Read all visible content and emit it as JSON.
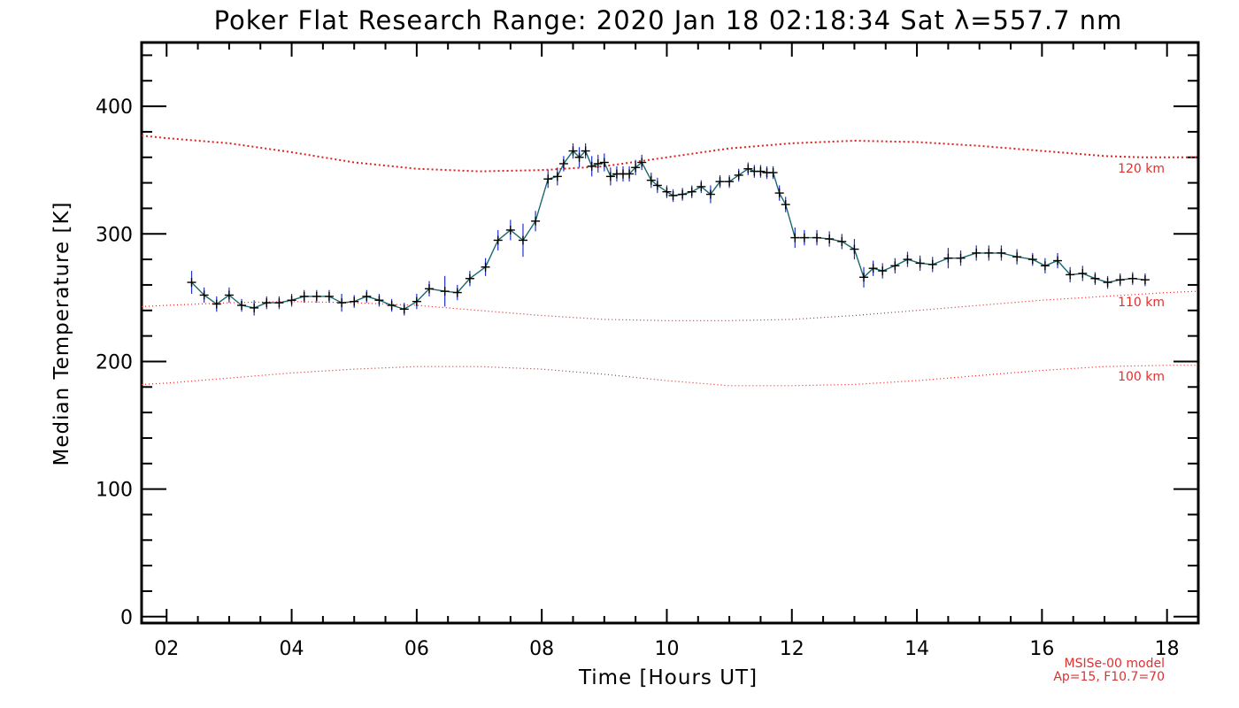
{
  "chart_data": {
    "type": "line",
    "title": "Poker Flat Research Range: 2020 Jan 18 02:18:34 Sat λ=557.7 nm",
    "xlabel": "Time [Hours UT]",
    "ylabel": "Median Temperature [K]",
    "xlim": [
      1.6,
      18.5
    ],
    "ylim": [
      -5,
      450
    ],
    "xticks": [
      2,
      4,
      6,
      8,
      10,
      12,
      14,
      16,
      18
    ],
    "xtick_labels": [
      "02",
      "04",
      "06",
      "08",
      "10",
      "12",
      "14",
      "16",
      "18"
    ],
    "yticks": [
      0,
      100,
      200,
      300,
      400
    ],
    "ytick_labels": [
      "0",
      "100",
      "200",
      "300",
      "400"
    ],
    "grid": false,
    "series": [
      {
        "color": "#1a6a70",
        "errorbar_color": "#2030d0",
        "marker_color": "#000000",
        "x": [
          2.4,
          2.6,
          2.8,
          3.0,
          3.2,
          3.4,
          3.6,
          3.8,
          4.0,
          4.2,
          4.4,
          4.6,
          4.8,
          5.0,
          5.2,
          5.4,
          5.6,
          5.8,
          6.0,
          6.2,
          6.45,
          6.65,
          6.85,
          7.1,
          7.3,
          7.5,
          7.7,
          7.9,
          8.1,
          8.25,
          8.35,
          8.5,
          8.6,
          8.7,
          8.8,
          8.9,
          9.0,
          9.1,
          9.2,
          9.3,
          9.4,
          9.5,
          9.6,
          9.75,
          9.85,
          10.0,
          10.1,
          10.25,
          10.4,
          10.55,
          10.7,
          10.85,
          11.0,
          11.15,
          11.3,
          11.4,
          11.5,
          11.6,
          11.7,
          11.8,
          11.9,
          12.05,
          12.2,
          12.4,
          12.6,
          12.8,
          13.0,
          13.15,
          13.3,
          13.45,
          13.65,
          13.85,
          14.05,
          14.25,
          14.5,
          14.7,
          14.95,
          15.15,
          15.35,
          15.6,
          15.85,
          16.05,
          16.25,
          16.45,
          16.65,
          16.85,
          17.05,
          17.25,
          17.45,
          17.65
        ],
        "y": [
          262,
          252,
          245,
          252,
          244,
          242,
          246,
          246,
          248,
          251,
          251,
          251,
          246,
          247,
          251,
          248,
          244,
          241,
          247,
          257,
          255,
          254,
          265,
          274,
          295,
          303,
          295,
          310,
          343,
          345,
          355,
          365,
          360,
          365,
          353,
          355,
          356,
          345,
          347,
          347,
          347,
          352,
          356,
          342,
          338,
          333,
          330,
          331,
          333,
          337,
          331,
          341,
          341,
          346,
          351,
          349,
          349,
          348,
          348,
          332,
          323,
          297,
          297,
          297,
          296,
          294,
          288,
          266,
          273,
          271,
          275,
          280,
          277,
          276,
          281,
          281,
          285,
          285,
          285,
          282,
          280,
          275,
          279,
          268,
          269,
          265,
          262,
          264,
          265,
          264
        ],
        "err": [
          9,
          6,
          6,
          6,
          5,
          6,
          5,
          5,
          5,
          5,
          5,
          5,
          7,
          5,
          5,
          5,
          5,
          5,
          6,
          6,
          12,
          6,
          6,
          7,
          8,
          8,
          13,
          8,
          7,
          7,
          6,
          6,
          8,
          6,
          8,
          7,
          7,
          7,
          6,
          6,
          6,
          6,
          6,
          6,
          6,
          5,
          5,
          5,
          5,
          5,
          7,
          5,
          5,
          5,
          5,
          5,
          5,
          5,
          5,
          6,
          6,
          8,
          6,
          6,
          6,
          6,
          8,
          8,
          6,
          6,
          6,
          6,
          6,
          6,
          8,
          6,
          6,
          6,
          6,
          6,
          5,
          6,
          6,
          6,
          6,
          5,
          5,
          5,
          5,
          5
        ]
      }
    ],
    "model_curves": [
      {
        "label": "120 km",
        "style": "dotted-dense",
        "color": "#e02020",
        "x": [
          1.6,
          2.0,
          3.0,
          4.0,
          5.0,
          6.0,
          7.0,
          8.0,
          9.0,
          10.0,
          11.0,
          12.0,
          13.0,
          14.0,
          15.0,
          16.0,
          17.0,
          17.6,
          18.5
        ],
        "y": [
          377,
          375,
          371,
          364,
          356,
          351,
          349,
          350,
          353,
          360,
          367,
          371,
          373,
          372,
          369,
          365,
          361,
          360,
          360
        ]
      },
      {
        "label": "110 km",
        "style": "dotted",
        "color": "#e02020",
        "x": [
          1.6,
          2.0,
          3.0,
          4.0,
          5.0,
          6.0,
          7.0,
          8.0,
          9.0,
          10.0,
          11.0,
          12.0,
          13.0,
          14.0,
          15.0,
          16.0,
          17.0,
          18.0,
          18.5
        ],
        "y": [
          243,
          244,
          246,
          247,
          246,
          244,
          240,
          236,
          233,
          232,
          232,
          233,
          236,
          240,
          244,
          248,
          251,
          254,
          255
        ]
      },
      {
        "label": "100 km",
        "style": "dotted",
        "color": "#e02020",
        "x": [
          1.6,
          2.0,
          3.0,
          4.0,
          5.0,
          6.0,
          7.0,
          8.0,
          9.0,
          10.0,
          11.0,
          12.0,
          13.0,
          14.0,
          15.0,
          16.0,
          17.0,
          18.0,
          18.5
        ],
        "y": [
          182,
          183,
          187,
          191,
          194,
          196,
          196,
          194,
          190,
          185,
          181,
          181,
          182,
          185,
          189,
          193,
          196,
          197,
          197
        ]
      }
    ],
    "model_note": [
      "MSISe-00 model",
      "Ap=15, F10.7=70"
    ]
  }
}
